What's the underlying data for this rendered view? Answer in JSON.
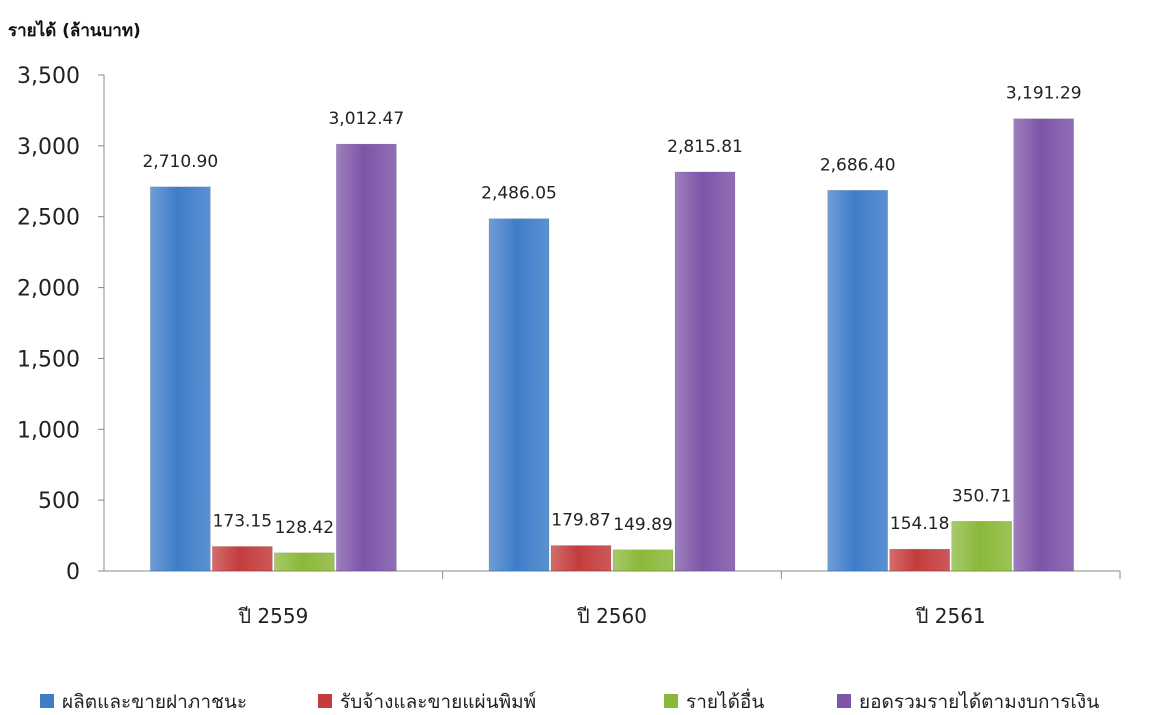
{
  "chart_data": {
    "type": "bar",
    "title": "",
    "ylabel": "รายได้ (ล้านบาท)",
    "xlabel": "",
    "ylim": [
      0,
      3500
    ],
    "yticks": [
      0,
      500,
      1000,
      1500,
      2000,
      2500,
      3000,
      3500
    ],
    "ytick_labels": [
      "0",
      "500",
      "1,000",
      "1,500",
      "2,000",
      "2,500",
      "3,000",
      "3,500"
    ],
    "categories": [
      "ปี 2559",
      "ปี 2560",
      "ปี 2561"
    ],
    "legend_position": "bottom",
    "grid": false,
    "series": [
      {
        "name": "ผลิตและขายฝาภาชนะ",
        "color": "#3f7dc9",
        "values": [
          2710.9,
          2486.05,
          2686.4
        ],
        "labels": [
          "2,710.90",
          "2,486.05",
          "2,686.40"
        ]
      },
      {
        "name": "รับจ้างและขายแผ่นพิมพ์",
        "color": "#c43c3c",
        "values": [
          173.15,
          179.87,
          154.18
        ],
        "labels": [
          "173.15",
          "179.87",
          "154.18"
        ]
      },
      {
        "name": "รายได้อื่น",
        "color": "#8bb83a",
        "values": [
          128.42,
          149.89,
          350.71
        ],
        "labels": [
          "128.42",
          "149.89",
          "350.71"
        ]
      },
      {
        "name": "ยอดรวมรายได้ตามงบการเงิน",
        "color": "#7d55a8",
        "values": [
          3012.47,
          2815.81,
          3191.29
        ],
        "labels": [
          "3,012.47",
          "2,815.81",
          "3,191.29"
        ]
      }
    ]
  }
}
